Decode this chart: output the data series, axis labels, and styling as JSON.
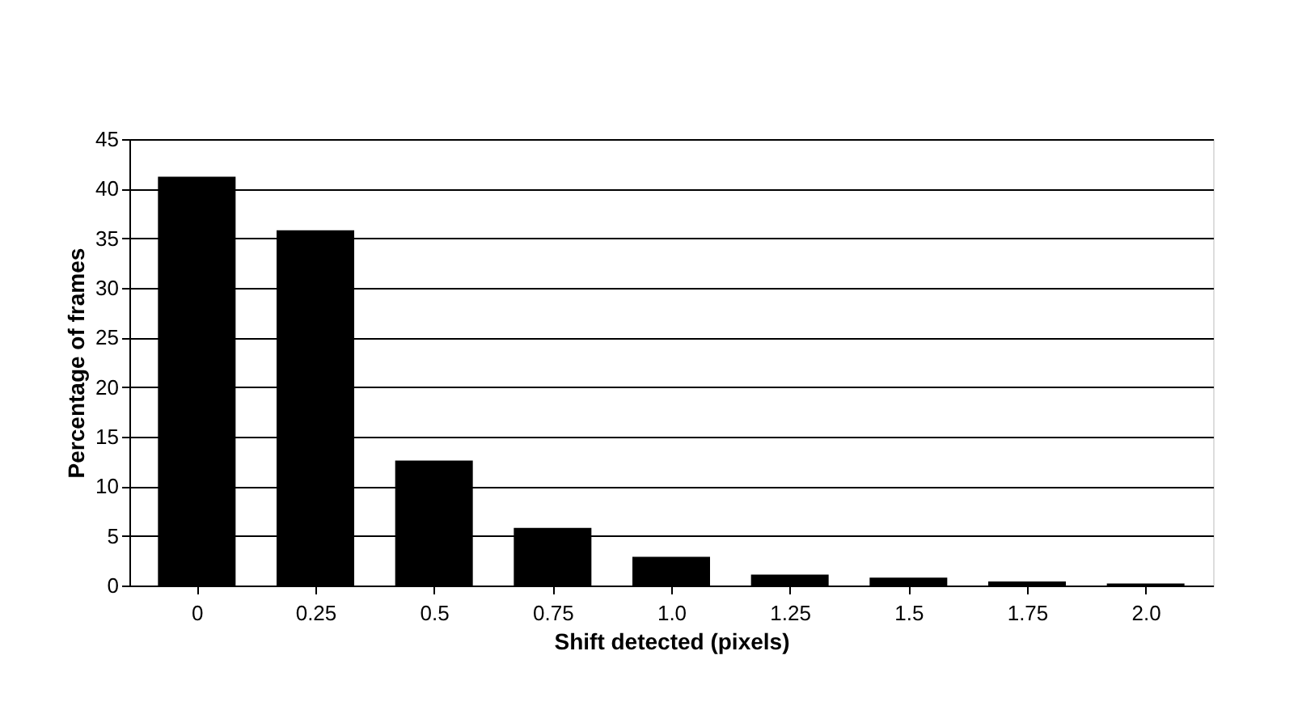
{
  "chart_data": {
    "type": "bar",
    "xlabel": "Shift detected (pixels)",
    "ylabel": "Percentage of frames",
    "categories": [
      "0",
      "0.25",
      "0.5",
      "0.75",
      "1.0",
      "1.25",
      "1.5",
      "1.75",
      "2.0"
    ],
    "values": [
      41.2,
      35.8,
      12.6,
      5.8,
      2.9,
      1.1,
      0.8,
      0.4,
      0.2
    ],
    "color": "#000000",
    "ylim": [
      0,
      45
    ],
    "yticks": [
      0,
      5,
      10,
      15,
      20,
      25,
      30,
      35,
      40,
      45
    ],
    "grid": "y"
  }
}
